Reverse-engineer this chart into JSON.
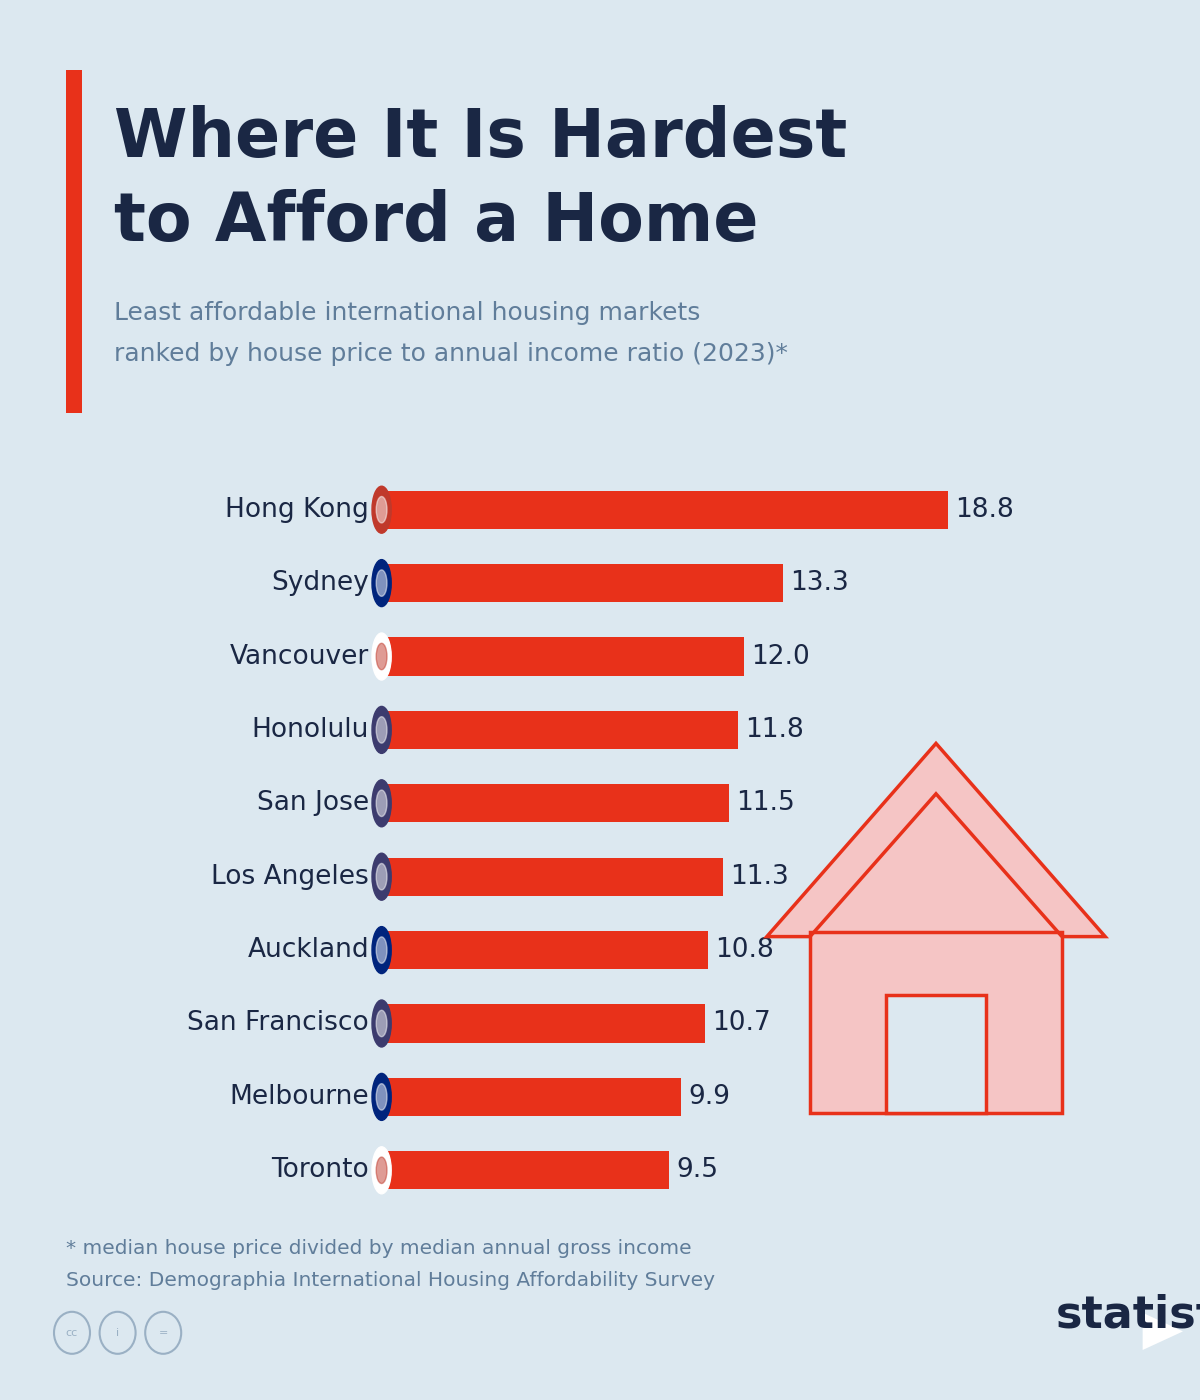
{
  "title_line1": "Where It Is Hardest",
  "title_line2": "to Afford a Home",
  "subtitle_line1": "Least affordable international housing markets",
  "subtitle_line2": "ranked by house price to annual income ratio (2023)*",
  "categories": [
    "Hong Kong",
    "Sydney",
    "Vancouver",
    "Honolulu",
    "San Jose",
    "Los Angeles",
    "Auckland",
    "San Francisco",
    "Melbourne",
    "Toronto"
  ],
  "values": [
    18.8,
    13.3,
    12.0,
    11.8,
    11.5,
    11.3,
    10.8,
    10.7,
    9.9,
    9.5
  ],
  "bar_color": "#E8311A",
  "background_color": "#dce8f0",
  "title_color": "#1a2744",
  "subtitle_color": "#607d9a",
  "label_color": "#1a2744",
  "value_color": "#1a2744",
  "footnote_line1": "* median house price divided by median annual gross income",
  "footnote_line2": "Source: Demographia International Housing Affordability Survey",
  "footnote_color": "#607d9a",
  "statista_color": "#1a2744",
  "title_red_bar_color": "#E8311A",
  "xlim_max": 22,
  "bar_height": 0.52,
  "house_fill": "#f5c5c5",
  "house_edge": "#E8311A"
}
